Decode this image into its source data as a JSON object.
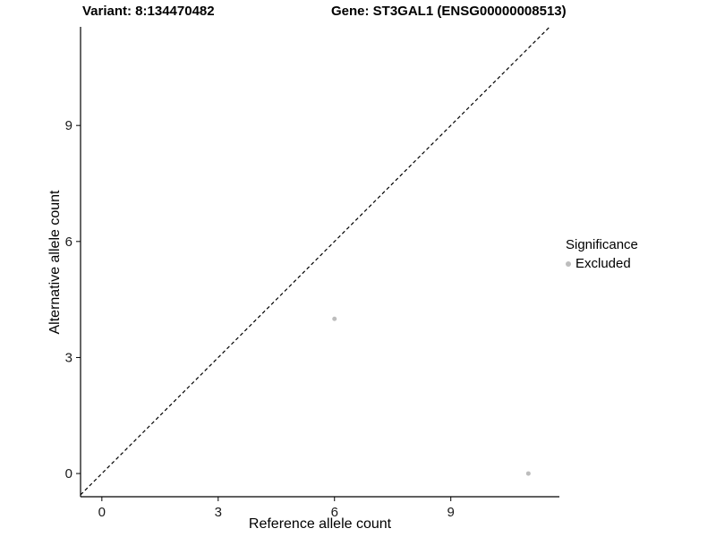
{
  "title": {
    "variant": "Variant: 8:134470482",
    "gene": "Gene: ST3GAL1 (ENSG00000008513)"
  },
  "chart_data": {
    "type": "scatter",
    "title": "Variant: 8:134470482  /  Gene: ST3GAL1 (ENSG00000008513)",
    "xlabel": "Reference allele count",
    "ylabel": "Alternative allele count",
    "xticks": [
      0,
      3,
      6,
      9
    ],
    "yticks": [
      0,
      3,
      6,
      9
    ],
    "xlim": [
      -0.55,
      11.8
    ],
    "ylim": [
      -0.6,
      11.55
    ],
    "grid": false,
    "identity_line": {
      "style": "dashed",
      "color": "#000000",
      "slope": 1,
      "intercept": 0
    },
    "series": [
      {
        "name": "Excluded",
        "color": "#bdbdbd",
        "point_radius": 2.5,
        "points": [
          {
            "x": 6,
            "y": 4
          },
          {
            "x": 11,
            "y": 0
          }
        ]
      }
    ],
    "legend_position": "right"
  },
  "legend": {
    "title": "Significance",
    "items": [
      {
        "label": "Excluded",
        "color": "#bdbdbd"
      }
    ]
  }
}
